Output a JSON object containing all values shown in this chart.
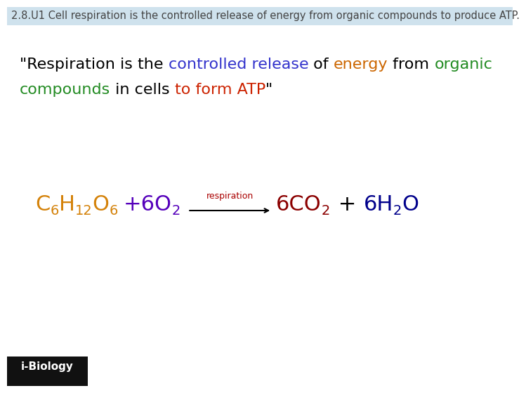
{
  "title_bg_color": "#cfe2ed",
  "title_text": "2.8.U1 Cell respiration is the controlled release of energy from organic compounds to produce ATP.",
  "title_fontsize": 10.5,
  "title_color": "#444444",
  "bg_color": "#ffffff",
  "quote_line1": [
    {
      "text": "\"Respiration is the ",
      "color": "#000000",
      "style": "normal"
    },
    {
      "text": "controlled release",
      "color": "#3333cc",
      "style": "normal"
    },
    {
      "text": " of ",
      "color": "#000000",
      "style": "normal"
    },
    {
      "text": "energy",
      "color": "#cc6600",
      "style": "normal"
    },
    {
      "text": " from ",
      "color": "#000000",
      "style": "normal"
    },
    {
      "text": "organic",
      "color": "#228b22",
      "style": "normal"
    }
  ],
  "quote_line2": [
    {
      "text": "compounds",
      "color": "#228b22",
      "style": "normal"
    },
    {
      "text": " in cells ",
      "color": "#000000",
      "style": "normal"
    },
    {
      "text": "to form ATP",
      "color": "#cc2200",
      "style": "normal"
    },
    {
      "text": "\"",
      "color": "#000000",
      "style": "normal"
    }
  ],
  "quote_fontsize": 16,
  "eq_fontsize_big": 22,
  "eq_fontsize_small": 14,
  "orange": "#d4820a",
  "purple": "#5500bb",
  "dark_red": "#8b0000",
  "dark_blue": "#00008b",
  "black": "#000000",
  "arrow_label": "respiration",
  "arrow_label_color": "#aa0000",
  "arrow_label_fontsize": 9,
  "footer_text": "i-Biology",
  "footer_bg": "#111111",
  "footer_color": "#ffffff",
  "footer_fontsize": 11
}
